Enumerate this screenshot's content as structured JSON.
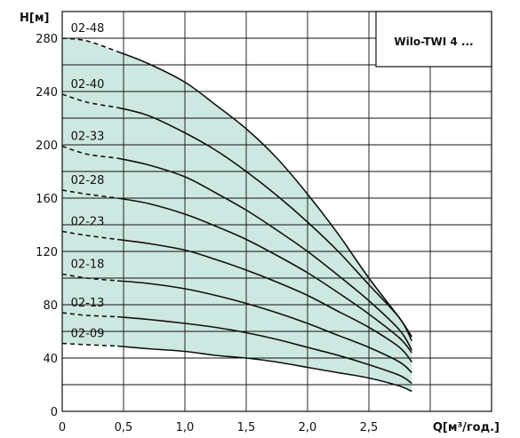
{
  "chart_data": {
    "type": "line",
    "title": "Wilo-TWI 4 ...",
    "xlabel": "Q[м³/год.]",
    "ylabel": "H[м]",
    "xlim": [
      0,
      3.5
    ],
    "ylim": [
      0,
      300
    ],
    "x_ticks": [
      {
        "value": 0,
        "label": "0"
      },
      {
        "value": 0.5,
        "label": "0,5"
      },
      {
        "value": 1.0,
        "label": "1,0"
      },
      {
        "value": 1.5,
        "label": "1,5"
      },
      {
        "value": 2.0,
        "label": "2,0"
      },
      {
        "value": 2.5,
        "label": "2,5"
      }
    ],
    "y_ticks": [
      0,
      40,
      80,
      120,
      160,
      200,
      240,
      280
    ],
    "grid": true,
    "fill_color": "#cde8e1",
    "line_color": "#111111",
    "dashed_until_x": 0.45,
    "series": [
      {
        "name": "02-48",
        "x": [
          0,
          0.2,
          0.45,
          0.7,
          1.0,
          1.25,
          1.5,
          1.75,
          2.0,
          2.25,
          2.5,
          2.75,
          2.85
        ],
        "y": [
          280,
          278,
          270,
          261,
          247,
          230,
          212,
          190,
          163,
          133,
          100,
          70,
          56
        ]
      },
      {
        "name": "02-40",
        "x": [
          0,
          0.2,
          0.45,
          0.7,
          1.0,
          1.25,
          1.5,
          1.75,
          2.0,
          2.25,
          2.5,
          2.75,
          2.85
        ],
        "y": [
          238,
          232,
          228,
          222,
          209,
          196,
          180,
          162,
          142,
          120,
          95,
          70,
          53
        ]
      },
      {
        "name": "02-33",
        "x": [
          0,
          0.2,
          0.45,
          0.7,
          1.0,
          1.25,
          1.5,
          1.75,
          2.0,
          2.25,
          2.5,
          2.75,
          2.85
        ],
        "y": [
          199,
          193,
          190,
          185,
          176,
          164,
          151,
          136,
          120,
          102,
          83,
          61,
          46
        ]
      },
      {
        "name": "02-28",
        "x": [
          0,
          0.2,
          0.45,
          0.7,
          1.0,
          1.25,
          1.5,
          1.75,
          2.0,
          2.25,
          2.5,
          2.75,
          2.85
        ],
        "y": [
          166,
          163,
          160,
          156,
          148,
          139,
          129,
          117,
          104,
          89,
          73,
          55,
          44
        ]
      },
      {
        "name": "02-23",
        "x": [
          0,
          0.2,
          0.45,
          0.7,
          1.0,
          1.25,
          1.5,
          1.75,
          2.0,
          2.25,
          2.5,
          2.75,
          2.85
        ],
        "y": [
          135,
          132,
          129,
          126,
          121,
          114,
          106,
          97,
          87,
          75,
          63,
          48,
          37
        ]
      },
      {
        "name": "02-18",
        "x": [
          0,
          0.2,
          0.45,
          0.7,
          1.0,
          1.25,
          1.5,
          1.75,
          2.0,
          2.25,
          2.5,
          2.75,
          2.85
        ],
        "y": [
          103,
          100,
          98,
          96,
          92,
          87,
          81,
          74,
          66,
          57,
          48,
          37,
          29
        ]
      },
      {
        "name": "02-13",
        "x": [
          0,
          0.2,
          0.45,
          0.7,
          1.0,
          1.25,
          1.5,
          1.75,
          2.0,
          2.25,
          2.5,
          2.75,
          2.85
        ],
        "y": [
          74,
          72,
          71,
          69,
          66,
          63,
          59,
          54,
          48,
          42,
          35,
          27,
          21
        ]
      },
      {
        "name": "02-09",
        "x": [
          0,
          0.2,
          0.45,
          0.7,
          1.0,
          1.25,
          1.5,
          1.75,
          2.0,
          2.25,
          2.5,
          2.75,
          2.85
        ],
        "y": [
          51,
          50,
          49,
          47,
          45,
          42,
          40,
          37,
          33,
          29,
          25,
          19,
          15
        ]
      }
    ]
  }
}
